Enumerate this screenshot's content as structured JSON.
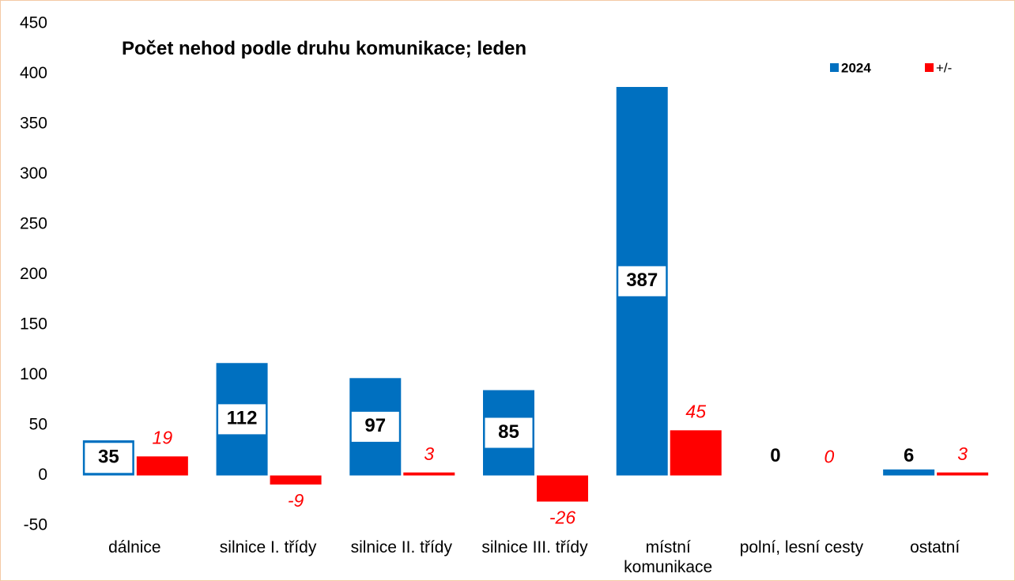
{
  "chart_data": {
    "type": "bar",
    "title": "Počet nehod podle druhu komunikace; leden",
    "categories": [
      "dálnice",
      "silnice I. třídy",
      "silnice II. třídy",
      "silnice III. třídy",
      "místní komunikace",
      "polní, lesní cesty",
      "ostatní"
    ],
    "series": [
      {
        "name": "2024",
        "color": "#0070c0",
        "values": [
          35,
          112,
          97,
          85,
          387,
          0,
          6
        ]
      },
      {
        "name": "+/-",
        "color": "#ff0000",
        "values": [
          19,
          -9,
          3,
          -26,
          45,
          0,
          3
        ]
      }
    ],
    "ylim": [
      -50,
      450
    ],
    "yticks": [
      -50,
      0,
      50,
      100,
      150,
      200,
      250,
      300,
      350,
      400,
      450
    ],
    "grid": false,
    "legend": "top-right"
  }
}
